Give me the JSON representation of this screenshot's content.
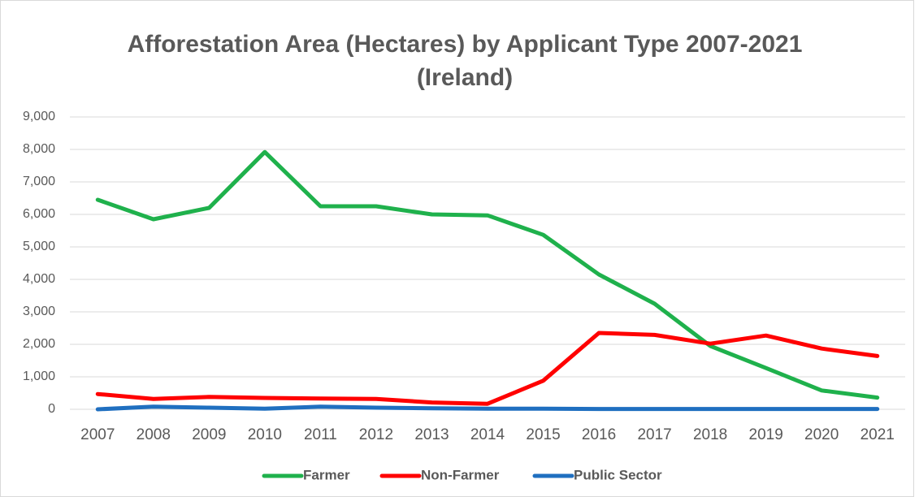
{
  "chart_data": {
    "type": "line",
    "title": [
      "Afforestation Area (Hectares) by Applicant Type 2007-2021",
      "(Ireland)"
    ],
    "categories": [
      "2007",
      "2008",
      "2009",
      "2010",
      "2011",
      "2012",
      "2013",
      "2014",
      "2015",
      "2016",
      "2017",
      "2018",
      "2019",
      "2020",
      "2021"
    ],
    "series": [
      {
        "name": "Farmer",
        "color": "#1fb14c",
        "values": [
          6450,
          5850,
          6200,
          7920,
          6250,
          6250,
          6000,
          5970,
          5370,
          4150,
          3250,
          1950,
          1270,
          580,
          360
        ]
      },
      {
        "name": "Non-Farmer",
        "color": "#ff0000",
        "values": [
          470,
          320,
          380,
          350,
          330,
          320,
          210,
          170,
          880,
          2350,
          2290,
          2020,
          2270,
          1870,
          1640
        ]
      },
      {
        "name": "Public Sector",
        "color": "#1f6fc0",
        "values": [
          0,
          80,
          50,
          20,
          80,
          50,
          30,
          20,
          20,
          10,
          10,
          10,
          10,
          10,
          10
        ]
      }
    ],
    "ylim": [
      0,
      9000
    ],
    "yticks": [
      0,
      {
        "value": 1000,
        "label": "1,000"
      },
      {
        "value": 2000,
        "label": "2,000"
      },
      {
        "value": 3000,
        "label": "3,000"
      },
      {
        "value": 4000,
        "label": "4,000"
      },
      {
        "value": 5000,
        "label": "5,000"
      },
      {
        "value": 6000,
        "label": "6,000"
      },
      {
        "value": 7000,
        "label": "7,000"
      },
      {
        "value": 8000,
        "label": "8,000"
      },
      {
        "value": 9000,
        "label": "9,000"
      }
    ],
    "grid": true,
    "legend": "bottom"
  }
}
